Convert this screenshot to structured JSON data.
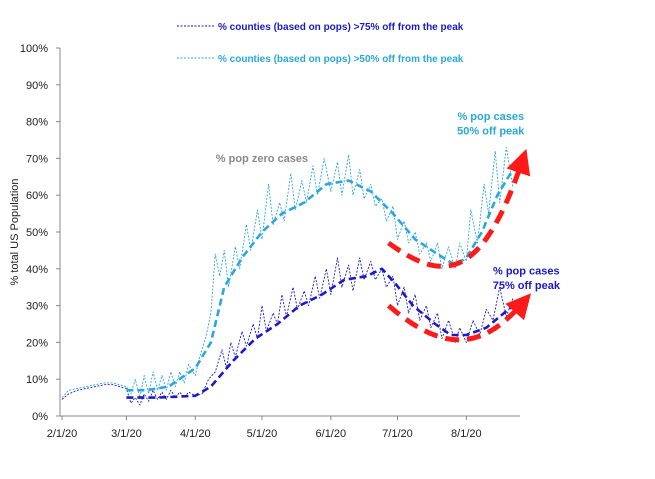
{
  "chart_data": {
    "type": "line",
    "ylabel": "% total US Population",
    "ylim": [
      0,
      100
    ],
    "yticks": [
      "0%",
      "10%",
      "20%",
      "30%",
      "40%",
      "50%",
      "60%",
      "70%",
      "80%",
      "90%",
      "100%"
    ],
    "xticks": [
      "2/1/20",
      "3/1/20",
      "4/1/20",
      "5/1/20",
      "6/1/20",
      "7/1/20",
      "8/1/20"
    ],
    "x_start": "2/1/20",
    "x_end": "8/22/20",
    "grid": false,
    "legend_position": "top",
    "series": [
      {
        "name": "% counties (based on pops) >75% off from the peak",
        "color": "#1a1acc",
        "style": "thin-dotted",
        "points": [
          [
            "2/1/20",
            4.5
          ],
          [
            "2/4/20",
            6
          ],
          [
            "2/8/20",
            7
          ],
          [
            "2/12/20",
            7.5
          ],
          [
            "2/16/20",
            8
          ],
          [
            "2/20/20",
            8.5
          ],
          [
            "2/24/20",
            8.5
          ],
          [
            "2/27/20",
            8
          ],
          [
            "3/1/20",
            7.5
          ],
          [
            "3/3/20",
            3.5
          ],
          [
            "3/5/20",
            5
          ],
          [
            "3/7/20",
            3
          ],
          [
            "3/9/20",
            6
          ],
          [
            "3/11/20",
            4
          ],
          [
            "3/13/20",
            7
          ],
          [
            "3/15/20",
            4.5
          ],
          [
            "3/17/20",
            6.5
          ],
          [
            "3/19/20",
            4.5
          ],
          [
            "3/21/20",
            7
          ],
          [
            "3/23/20",
            5
          ],
          [
            "3/25/20",
            6.5
          ],
          [
            "3/27/20",
            5
          ],
          [
            "3/29/20",
            6.5
          ],
          [
            "4/1/20",
            5.5
          ],
          [
            "4/4/20",
            6
          ],
          [
            "4/7/20",
            10
          ],
          [
            "4/10/20",
            12
          ],
          [
            "4/13/20",
            18
          ],
          [
            "4/15/20",
            13
          ],
          [
            "4/17/20",
            20
          ],
          [
            "4/19/20",
            16
          ],
          [
            "4/22/20",
            23
          ],
          [
            "4/24/20",
            19
          ],
          [
            "4/27/20",
            25
          ],
          [
            "4/29/20",
            21
          ],
          [
            "5/1/20",
            30
          ],
          [
            "5/3/20",
            23
          ],
          [
            "5/6/20",
            28
          ],
          [
            "5/8/20",
            25
          ],
          [
            "5/10/20",
            33
          ],
          [
            "5/12/20",
            27
          ],
          [
            "5/15/20",
            35
          ],
          [
            "5/17/20",
            29
          ],
          [
            "5/20/20",
            34
          ],
          [
            "5/22/20",
            30
          ],
          [
            "5/25/20",
            38
          ],
          [
            "5/27/20",
            32
          ],
          [
            "5/30/20",
            40
          ],
          [
            "6/1/20",
            33
          ],
          [
            "6/4/20",
            43
          ],
          [
            "6/6/20",
            35
          ],
          [
            "6/9/20",
            41
          ],
          [
            "6/11/20",
            34
          ],
          [
            "6/14/20",
            43
          ],
          [
            "6/16/20",
            37
          ],
          [
            "6/19/20",
            42
          ],
          [
            "6/21/20",
            37
          ],
          [
            "6/24/20",
            40
          ],
          [
            "6/26/20",
            35
          ],
          [
            "6/29/20",
            38
          ],
          [
            "7/1/20",
            30
          ],
          [
            "7/4/20",
            35
          ],
          [
            "7/6/20",
            28
          ],
          [
            "7/9/20",
            33
          ],
          [
            "7/11/20",
            26
          ],
          [
            "7/14/20",
            30
          ],
          [
            "7/16/20",
            24
          ],
          [
            "7/19/20",
            28
          ],
          [
            "7/21/20",
            21
          ],
          [
            "7/24/20",
            26
          ],
          [
            "7/27/20",
            20
          ],
          [
            "7/29/20",
            24
          ],
          [
            "8/1/20",
            20
          ],
          [
            "8/4/20",
            26
          ],
          [
            "8/7/20",
            22
          ],
          [
            "8/10/20",
            29
          ],
          [
            "8/13/20",
            26
          ],
          [
            "8/16/20",
            35
          ],
          [
            "8/19/20",
            27
          ],
          [
            "8/22/20",
            32
          ]
        ]
      },
      {
        "name": "% counties (based on pops) >50% off from the peak",
        "color": "#29a8dd",
        "style": "thin-dotted",
        "points": [
          [
            "2/1/20",
            5
          ],
          [
            "2/4/20",
            7
          ],
          [
            "2/8/20",
            7.5
          ],
          [
            "2/12/20",
            8
          ],
          [
            "2/16/20",
            8.5
          ],
          [
            "2/20/20",
            9
          ],
          [
            "2/24/20",
            9
          ],
          [
            "2/27/20",
            8.5
          ],
          [
            "3/1/20",
            8
          ],
          [
            "3/3/20",
            6
          ],
          [
            "3/5/20",
            10
          ],
          [
            "3/7/20",
            5
          ],
          [
            "3/9/20",
            11
          ],
          [
            "3/11/20",
            6
          ],
          [
            "3/13/20",
            12
          ],
          [
            "3/15/20",
            7
          ],
          [
            "3/17/20",
            11
          ],
          [
            "3/19/20",
            7
          ],
          [
            "3/21/20",
            12
          ],
          [
            "3/23/20",
            8
          ],
          [
            "3/25/20",
            12
          ],
          [
            "3/27/20",
            9
          ],
          [
            "3/29/20",
            14
          ],
          [
            "4/1/20",
            11
          ],
          [
            "4/3/20",
            16
          ],
          [
            "4/6/20",
            22
          ],
          [
            "4/8/20",
            28
          ],
          [
            "4/10/20",
            44
          ],
          [
            "4/12/20",
            38
          ],
          [
            "4/14/20",
            45
          ],
          [
            "4/16/20",
            35
          ],
          [
            "4/19/20",
            46
          ],
          [
            "4/21/20",
            40
          ],
          [
            "4/24/20",
            52
          ],
          [
            "4/26/20",
            45
          ],
          [
            "4/29/20",
            56
          ],
          [
            "5/1/20",
            48
          ],
          [
            "5/4/20",
            63
          ],
          [
            "5/6/20",
            52
          ],
          [
            "5/9/20",
            58
          ],
          [
            "5/11/20",
            53
          ],
          [
            "5/14/20",
            66
          ],
          [
            "5/16/20",
            56
          ],
          [
            "5/19/20",
            64
          ],
          [
            "5/21/20",
            58
          ],
          [
            "5/24/20",
            68
          ],
          [
            "5/26/20",
            60
          ],
          [
            "5/29/20",
            70
          ],
          [
            "6/1/20",
            61
          ],
          [
            "6/4/20",
            69
          ],
          [
            "6/6/20",
            60
          ],
          [
            "6/9/20",
            71
          ],
          [
            "6/11/20",
            60
          ],
          [
            "6/14/20",
            67
          ],
          [
            "6/16/20",
            59
          ],
          [
            "6/19/20",
            63
          ],
          [
            "6/21/20",
            57
          ],
          [
            "6/24/20",
            59
          ],
          [
            "6/26/20",
            53
          ],
          [
            "6/29/20",
            57
          ],
          [
            "7/1/20",
            48
          ],
          [
            "7/4/20",
            53
          ],
          [
            "7/6/20",
            47
          ],
          [
            "7/9/20",
            50
          ],
          [
            "7/11/20",
            44
          ],
          [
            "7/14/20",
            47
          ],
          [
            "7/16/20",
            42
          ],
          [
            "7/19/20",
            47
          ],
          [
            "7/21/20",
            40
          ],
          [
            "7/24/20",
            46
          ],
          [
            "7/27/20",
            40
          ],
          [
            "7/29/20",
            47
          ],
          [
            "8/1/20",
            42
          ],
          [
            "8/3/20",
            56
          ],
          [
            "8/6/20",
            47
          ],
          [
            "8/9/20",
            63
          ],
          [
            "8/11/20",
            55
          ],
          [
            "8/14/20",
            72
          ],
          [
            "8/16/20",
            58
          ],
          [
            "8/19/20",
            73
          ],
          [
            "8/22/20",
            62
          ]
        ]
      },
      {
        "color": "#1a1acc",
        "style": "bold-dashed",
        "points": [
          [
            "3/1/20",
            5
          ],
          [
            "3/15/20",
            5
          ],
          [
            "4/1/20",
            5.5
          ],
          [
            "4/8/20",
            8
          ],
          [
            "4/18/20",
            15
          ],
          [
            "4/28/20",
            21
          ],
          [
            "5/8/20",
            25
          ],
          [
            "5/18/20",
            30
          ],
          [
            "5/28/20",
            33
          ],
          [
            "6/7/20",
            37
          ],
          [
            "6/17/20",
            38
          ],
          [
            "6/24/20",
            40
          ],
          [
            "6/30/20",
            36
          ],
          [
            "7/8/20",
            30
          ],
          [
            "7/18/20",
            25
          ],
          [
            "7/25/20",
            22
          ],
          [
            "8/1/20",
            22
          ],
          [
            "8/10/20",
            24
          ],
          [
            "8/18/20",
            28
          ],
          [
            "8/22/20",
            30
          ]
        ]
      },
      {
        "color": "#29a8dd",
        "style": "bold-dashed",
        "points": [
          [
            "3/1/20",
            7
          ],
          [
            "3/10/20",
            7
          ],
          [
            "3/20/20",
            8
          ],
          [
            "4/1/20",
            13
          ],
          [
            "4/8/20",
            20
          ],
          [
            "4/14/20",
            35
          ],
          [
            "4/22/20",
            43
          ],
          [
            "5/1/20",
            50
          ],
          [
            "5/10/20",
            55
          ],
          [
            "5/20/20",
            58
          ],
          [
            "5/30/20",
            63
          ],
          [
            "6/9/20",
            64
          ],
          [
            "6/19/20",
            61
          ],
          [
            "6/29/20",
            55
          ],
          [
            "7/9/20",
            48
          ],
          [
            "7/19/20",
            44
          ],
          [
            "7/27/20",
            41
          ],
          [
            "8/1/20",
            43
          ],
          [
            "8/8/20",
            50
          ],
          [
            "8/15/20",
            60
          ],
          [
            "8/22/20",
            67
          ]
        ]
      }
    ],
    "annotations": [
      {
        "text": "% pop zero cases",
        "color": "#8a8a8a",
        "x": "5/1/20",
        "y": 69
      },
      {
        "text": "% pop cases",
        "color": "#29a8dd",
        "x": "8/12/20",
        "y": 80.5
      },
      {
        "text": "50% off peak",
        "color": "#29a8dd",
        "x": "8/12/20",
        "y": 76.5
      },
      {
        "text": "% pop cases",
        "color": "#1a1acc",
        "x": "8/28/20",
        "y": 38.5
      },
      {
        "text": "75% off peak",
        "color": "#1a1acc",
        "x": "8/28/20",
        "y": 34.5
      }
    ],
    "arrows": [
      {
        "color": "#ff1a1a",
        "points": [
          [
            "6/27/20",
            47
          ],
          [
            "7/22/20",
            36
          ],
          [
            "8/8/20",
            37
          ],
          [
            "8/26/20",
            69
          ]
        ]
      },
      {
        "color": "#ff1a1a",
        "points": [
          [
            "6/27/20",
            30
          ],
          [
            "7/22/20",
            17
          ],
          [
            "8/8/20",
            18
          ],
          [
            "8/26/20",
            30.5
          ]
        ]
      }
    ]
  }
}
